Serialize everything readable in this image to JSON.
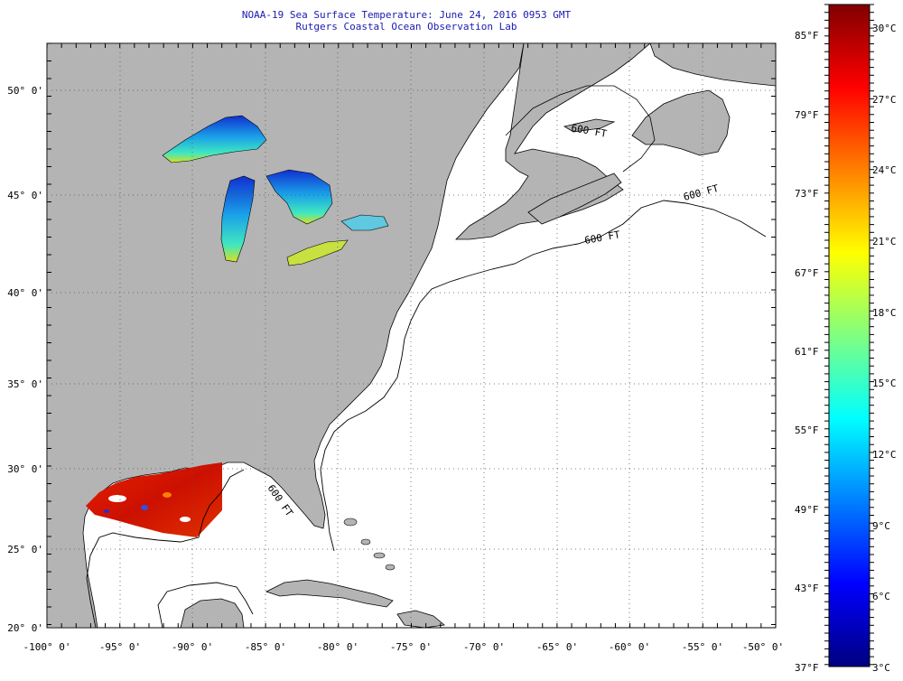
{
  "header": {
    "line1": "NOAA-19 Sea Surface Temperature:  June 24, 2016 0953 GMT",
    "line2": "Rutgers Coastal Ocean Observation Lab"
  },
  "map": {
    "lon_labels": [
      "-100° 0'",
      "-95° 0'",
      "-90° 0'",
      "-85° 0'",
      "-80° 0'",
      "-75° 0'",
      "-70° 0'",
      "-65° 0'",
      "-60° 0'",
      "-55° 0'",
      "-50° 0'"
    ],
    "lat_labels": [
      "50° 0'",
      "45° 0'",
      "40° 0'",
      "35° 0'",
      "30° 0'",
      "25° 0'",
      "20° 0'"
    ],
    "depth_labels": [
      "600 FT",
      "600 FT",
      "600 FT",
      "600 FT"
    ],
    "colors": {
      "land": "#b4b4b4",
      "ocean": "#ffffff",
      "grid": "#555555"
    }
  },
  "colorbar": {
    "fahrenheit_labels": [
      "85°F",
      "79°F",
      "73°F",
      "67°F",
      "61°F",
      "55°F",
      "49°F",
      "43°F",
      "37°F"
    ],
    "celsius_labels": [
      "30°C",
      "27°C",
      "24°C",
      "21°C",
      "18°C",
      "15°C",
      "12°C",
      "9°C",
      "6°C",
      "3°C"
    ],
    "colors_bottom_to_top": [
      "#000080",
      "#0000ff",
      "#0080ff",
      "#00ffff",
      "#80ff80",
      "#ffff00",
      "#ff8000",
      "#ff0000",
      "#800000"
    ]
  }
}
